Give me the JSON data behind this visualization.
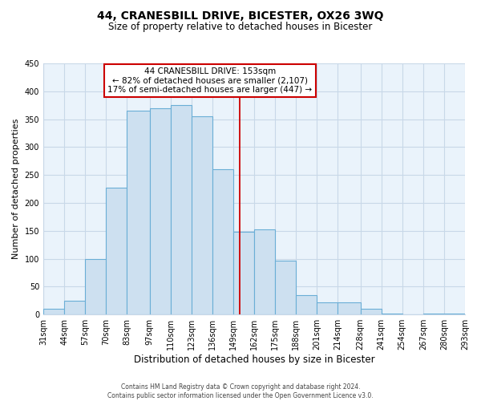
{
  "title": "44, CRANESBILL DRIVE, BICESTER, OX26 3WQ",
  "subtitle": "Size of property relative to detached houses in Bicester",
  "xlabel": "Distribution of detached houses by size in Bicester",
  "ylabel": "Number of detached properties",
  "bin_labels": [
    "31sqm",
    "44sqm",
    "57sqm",
    "70sqm",
    "83sqm",
    "97sqm",
    "110sqm",
    "123sqm",
    "136sqm",
    "149sqm",
    "162sqm",
    "175sqm",
    "188sqm",
    "201sqm",
    "214sqm",
    "228sqm",
    "241sqm",
    "254sqm",
    "267sqm",
    "280sqm",
    "293sqm"
  ],
  "bin_edges": [
    31,
    44,
    57,
    70,
    83,
    97,
    110,
    123,
    136,
    149,
    162,
    175,
    188,
    201,
    214,
    228,
    241,
    254,
    267,
    280,
    293
  ],
  "bar_heights": [
    10,
    25,
    100,
    228,
    365,
    370,
    375,
    355,
    260,
    148,
    153,
    97,
    35,
    22,
    22,
    10,
    2,
    1,
    2,
    2
  ],
  "bar_color": "#cde0f0",
  "bar_edge_color": "#6aaed6",
  "reference_line_x": 153,
  "reference_line_color": "#cc0000",
  "annotation_title": "44 CRANESBILL DRIVE: 153sqm",
  "annotation_line1": "← 82% of detached houses are smaller (2,107)",
  "annotation_line2": "17% of semi-detached houses are larger (447) →",
  "annotation_box_facecolor": "#ffffff",
  "annotation_box_edgecolor": "#cc0000",
  "ylim": [
    0,
    450
  ],
  "yticks": [
    0,
    50,
    100,
    150,
    200,
    250,
    300,
    350,
    400,
    450
  ],
  "footer1": "Contains HM Land Registry data © Crown copyright and database right 2024.",
  "footer2": "Contains public sector information licensed under the Open Government Licence v3.0.",
  "background_color": "#ffffff",
  "grid_color": "#c8d8e8",
  "title_fontsize": 10,
  "subtitle_fontsize": 8.5,
  "ylabel_fontsize": 8,
  "xlabel_fontsize": 8.5,
  "tick_fontsize": 7,
  "footer_fontsize": 5.5
}
